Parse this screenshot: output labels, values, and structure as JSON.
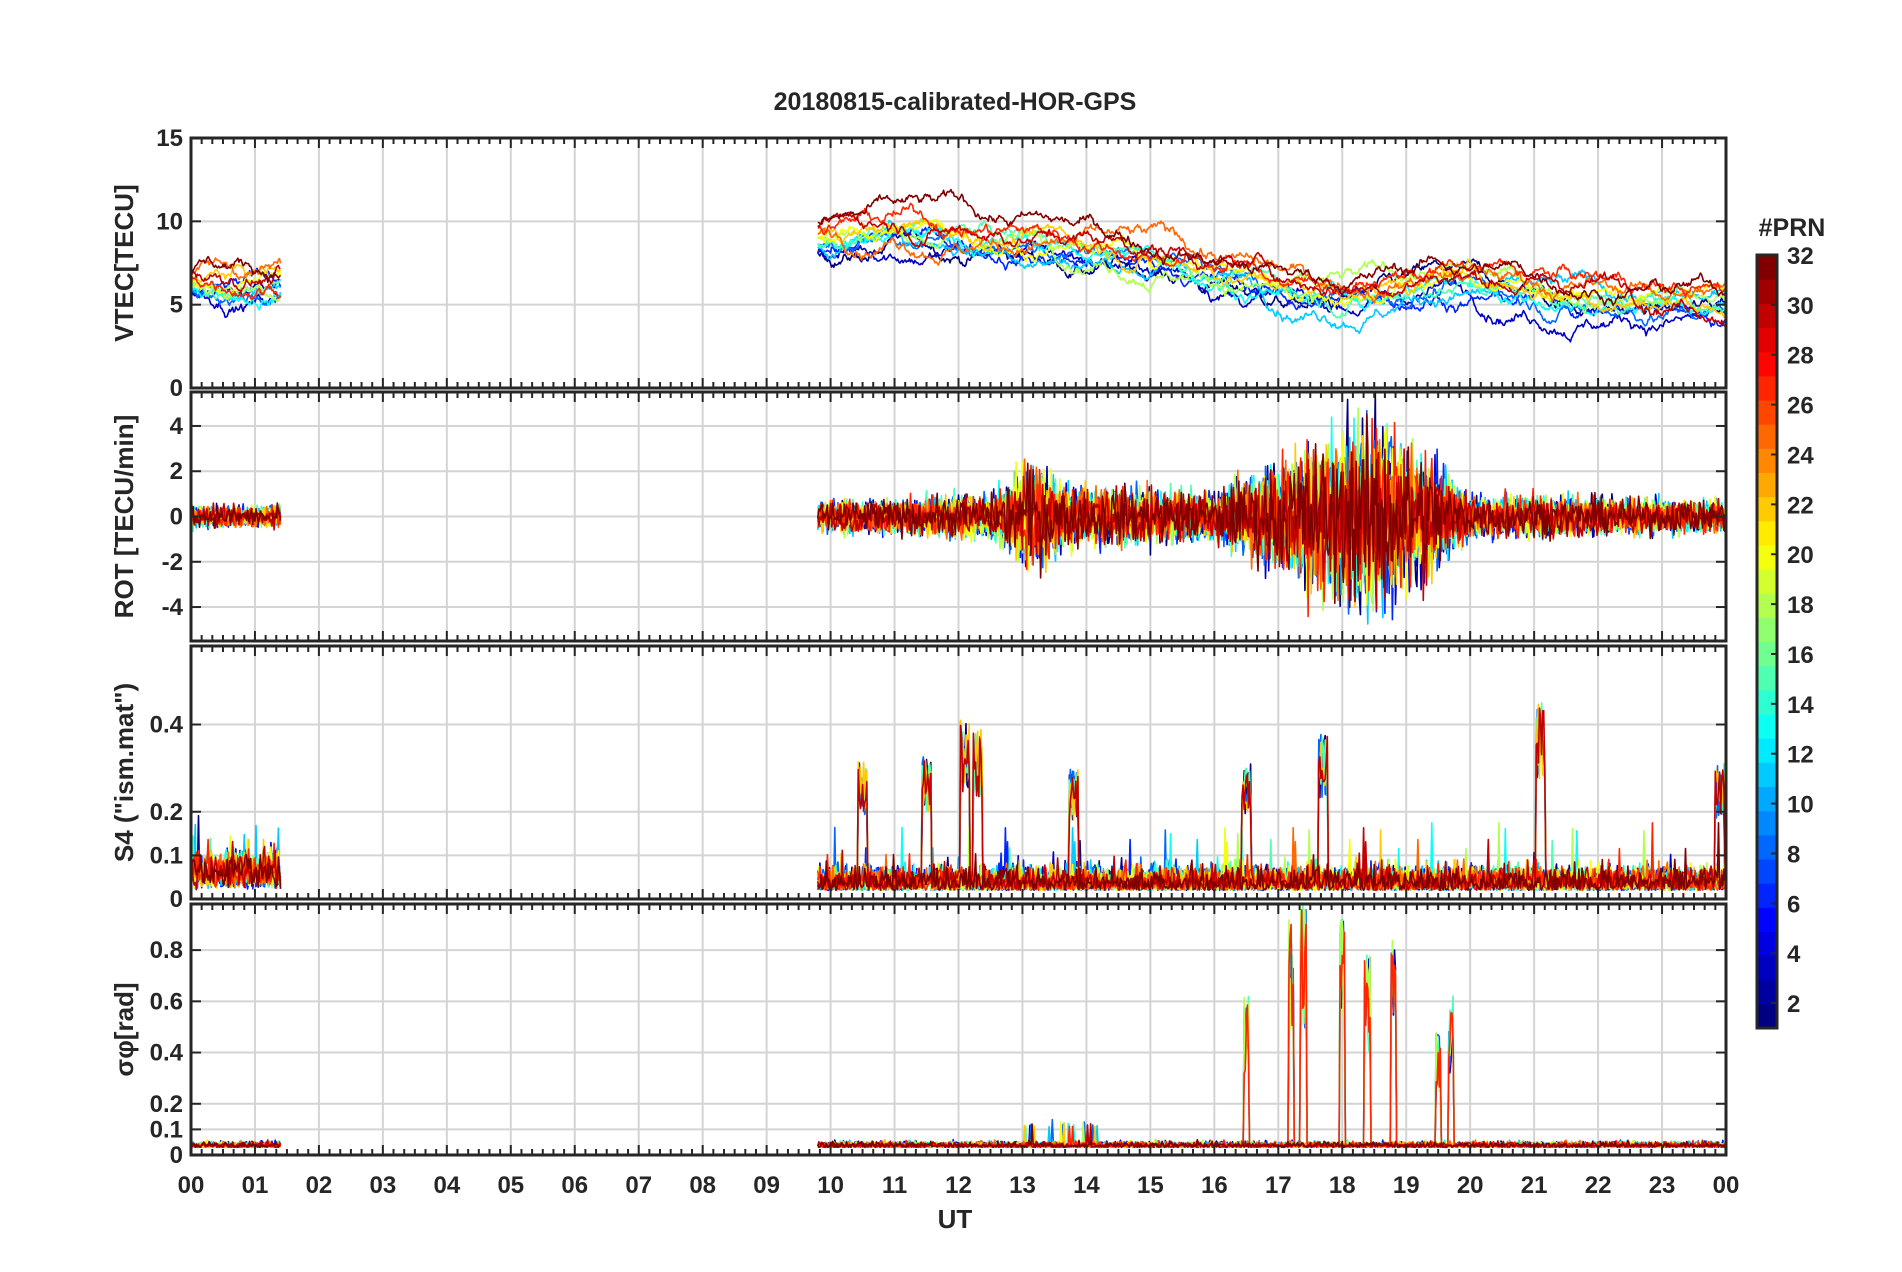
{
  "chart_data": {
    "type": "line",
    "title": "20180815-calibrated-HOR-GPS",
    "xlabel": "UT",
    "x_ticks": [
      "00",
      "01",
      "02",
      "03",
      "04",
      "05",
      "06",
      "07",
      "08",
      "09",
      "10",
      "11",
      "12",
      "13",
      "14",
      "15",
      "16",
      "17",
      "18",
      "19",
      "20",
      "21",
      "22",
      "23",
      "00"
    ],
    "x_range_hours": [
      0,
      24
    ],
    "grid": true,
    "colorbar": {
      "label": "#PRN",
      "range": [
        1,
        32
      ],
      "ticks": [
        "2",
        "4",
        "6",
        "8",
        "10",
        "12",
        "14",
        "16",
        "18",
        "20",
        "22",
        "24",
        "26",
        "28",
        "30",
        "32"
      ],
      "colormap": "jet",
      "placement": "right"
    },
    "panels": [
      {
        "name": "vtec",
        "ylabel": "VTEC[TECU]",
        "ylim": [
          0,
          15
        ],
        "yticks": [
          0,
          5,
          10,
          15
        ],
        "coverage_hours": [
          [
            0,
            1.4
          ],
          [
            9.8,
            24
          ]
        ],
        "trend": [
          [
            0,
            6.3
          ],
          [
            1.4,
            6.5
          ],
          [
            9.8,
            9.0
          ],
          [
            11,
            9.5
          ],
          [
            13,
            9.0
          ],
          [
            14,
            8.5
          ],
          [
            15.5,
            7.8
          ],
          [
            16.5,
            6.8
          ],
          [
            17.5,
            5.8
          ],
          [
            18.5,
            6.0
          ],
          [
            19.5,
            6.8
          ],
          [
            21,
            6.0
          ],
          [
            22.5,
            5.6
          ],
          [
            24,
            5.2
          ]
        ],
        "spread": 1.8
      },
      {
        "name": "rot",
        "ylabel": "ROT [TECU/min]",
        "ylim": [
          -5.5,
          5.5
        ],
        "yticks": [
          -4,
          -2,
          0,
          2,
          4
        ],
        "coverage_hours": [
          [
            0,
            1.4
          ],
          [
            9.8,
            24
          ]
        ],
        "activity": [
          [
            0,
            0.4
          ],
          [
            1.4,
            0.4
          ],
          [
            9.8,
            0.6
          ],
          [
            12.5,
            0.8
          ],
          [
            13.2,
            2.2
          ],
          [
            13.6,
            1.2
          ],
          [
            16,
            0.9
          ],
          [
            16.8,
            1.8
          ],
          [
            17.3,
            2.5
          ],
          [
            18.4,
            3.6
          ],
          [
            19.3,
            2.4
          ],
          [
            20,
            0.8
          ],
          [
            24,
            0.6
          ]
        ]
      },
      {
        "name": "s4",
        "ylabel": "S4 (\"ism.mat\")",
        "ylim": [
          0,
          0.58
        ],
        "yticks": [
          0,
          0.1,
          0.2,
          0.4
        ],
        "coverage_hours": [
          [
            0,
            1.4
          ],
          [
            9.8,
            24
          ]
        ],
        "peaks": [
          [
            12.1,
            0.41
          ],
          [
            12.3,
            0.39
          ],
          [
            21.1,
            0.45
          ],
          [
            17.7,
            0.38
          ],
          [
            11.5,
            0.33
          ],
          [
            10.5,
            0.32
          ],
          [
            23.9,
            0.31
          ],
          [
            13.8,
            0.3
          ],
          [
            16.5,
            0.31
          ]
        ]
      },
      {
        "name": "sigma-phi",
        "ylabel": "σφ[rad]",
        "ylim": [
          0,
          0.98
        ],
        "yticks": [
          0,
          0.1,
          0.2,
          0.4,
          0.6,
          0.8
        ],
        "coverage_hours": [
          [
            0,
            1.4
          ],
          [
            9.8,
            24
          ]
        ],
        "peaks": [
          [
            16.5,
            0.63
          ],
          [
            17.2,
            0.95
          ],
          [
            17.4,
            0.98
          ],
          [
            18.0,
            0.98
          ],
          [
            18.4,
            0.78
          ],
          [
            18.8,
            0.88
          ],
          [
            19.5,
            0.48
          ],
          [
            19.7,
            0.64
          ]
        ]
      }
    ]
  }
}
